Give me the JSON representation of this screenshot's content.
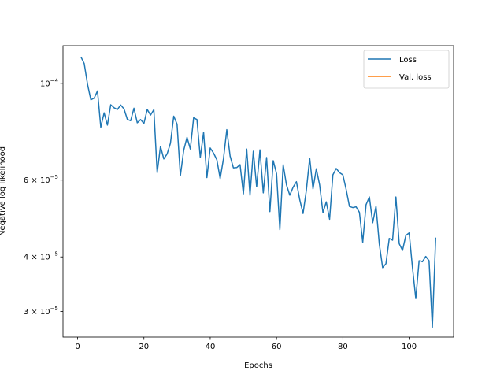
{
  "chart_data": {
    "type": "line",
    "xlabel": "Epochs",
    "ylabel": "Negative log likelihood",
    "xlim": [
      -4.4,
      113.4
    ],
    "ylim": [
      2.62e-05,
      0.000122
    ],
    "yscale": "log",
    "grid": false,
    "legend_position": "top-right",
    "x_ticks": [
      {
        "value": 0,
        "label": "0"
      },
      {
        "value": 20,
        "label": "20"
      },
      {
        "value": 40,
        "label": "40"
      },
      {
        "value": 60,
        "label": "60"
      },
      {
        "value": 80,
        "label": "80"
      },
      {
        "value": 100,
        "label": "100"
      }
    ],
    "y_ticks": [
      {
        "value": 0.0001,
        "base": "10",
        "exp": "−4"
      },
      {
        "value": 6e-05,
        "mant": "6",
        "exp": "−5"
      },
      {
        "value": 4e-05,
        "mant": "4",
        "exp": "−5"
      },
      {
        "value": 3e-05,
        "mant": "3",
        "exp": "−5"
      }
    ],
    "series": [
      {
        "name": "Loss",
        "color": "#1f77b4",
        "x": [
          1,
          2,
          3,
          4,
          5,
          6,
          7,
          8,
          9,
          10,
          11,
          12,
          13,
          14,
          15,
          16,
          17,
          18,
          19,
          20,
          21,
          22,
          23,
          24,
          25,
          26,
          27,
          28,
          29,
          30,
          31,
          32,
          33,
          34,
          35,
          36,
          37,
          38,
          39,
          40,
          41,
          42,
          43,
          44,
          45,
          46,
          47,
          48,
          49,
          50,
          51,
          52,
          53,
          54,
          55,
          56,
          57,
          58,
          59,
          60,
          61,
          62,
          63,
          64,
          65,
          66,
          67,
          68,
          69,
          70,
          71,
          72,
          73,
          74,
          75,
          76,
          77,
          78,
          79,
          80,
          81,
          82,
          83,
          84,
          85,
          86,
          87,
          88,
          89,
          90,
          91,
          92,
          93,
          94,
          95,
          96,
          97,
          98,
          99,
          100,
          101,
          102,
          103,
          104,
          105,
          106,
          107,
          108
        ],
        "y": [
          0.000115,
          0.000111,
          9.95e-05,
          9.17e-05,
          9.25e-05,
          9.61e-05,
          7.93e-05,
          8.56e-05,
          8.02e-05,
          8.93e-05,
          8.79e-05,
          8.71e-05,
          8.92e-05,
          8.74e-05,
          8.27e-05,
          8.21e-05,
          8.77e-05,
          8.12e-05,
          8.26e-05,
          8.09e-05,
          8.71e-05,
          8.46e-05,
          8.7e-05,
          6.24e-05,
          7.17e-05,
          6.71e-05,
          6.89e-05,
          7.29e-05,
          8.41e-05,
          8.06e-05,
          6.14e-05,
          7.02e-05,
          7.52e-05,
          7.07e-05,
          8.34e-05,
          8.26e-05,
          6.76e-05,
          7.72e-05,
          6.08e-05,
          7.11e-05,
          6.92e-05,
          6.68e-05,
          6.05e-05,
          6.72e-05,
          7.83e-05,
          6.81e-05,
          6.4e-05,
          6.41e-05,
          6.51e-05,
          5.58e-05,
          7.07e-05,
          5.54e-05,
          6.99e-05,
          5.79e-05,
          7.04e-05,
          5.61e-05,
          6.76e-05,
          5.08e-05,
          6.65e-05,
          6.21e-05,
          4.62e-05,
          6.51e-05,
          5.85e-05,
          5.54e-05,
          5.78e-05,
          5.95e-05,
          5.41e-05,
          5.03e-05,
          5.69e-05,
          6.74e-05,
          5.73e-05,
          6.37e-05,
          5.85e-05,
          5.05e-05,
          5.35e-05,
          4.88e-05,
          6.17e-05,
          6.38e-05,
          6.24e-05,
          6.17e-05,
          5.71e-05,
          5.22e-05,
          5.19e-05,
          5.21e-05,
          5.06e-05,
          4.32e-05,
          5.27e-05,
          5.49e-05,
          4.79e-05,
          5.23e-05,
          4.28e-05,
          3.78e-05,
          3.86e-05,
          4.41e-05,
          4.37e-05,
          5.49e-05,
          4.29e-05,
          4.14e-05,
          4.48e-05,
          4.54e-05,
          3.78e-05,
          3.21e-05,
          3.92e-05,
          3.9e-05,
          4.01e-05,
          3.92e-05,
          2.76e-05,
          4.43e-05
        ]
      },
      {
        "name": "Val. loss",
        "color": "#ff7f0e",
        "x": [],
        "y": []
      }
    ]
  }
}
